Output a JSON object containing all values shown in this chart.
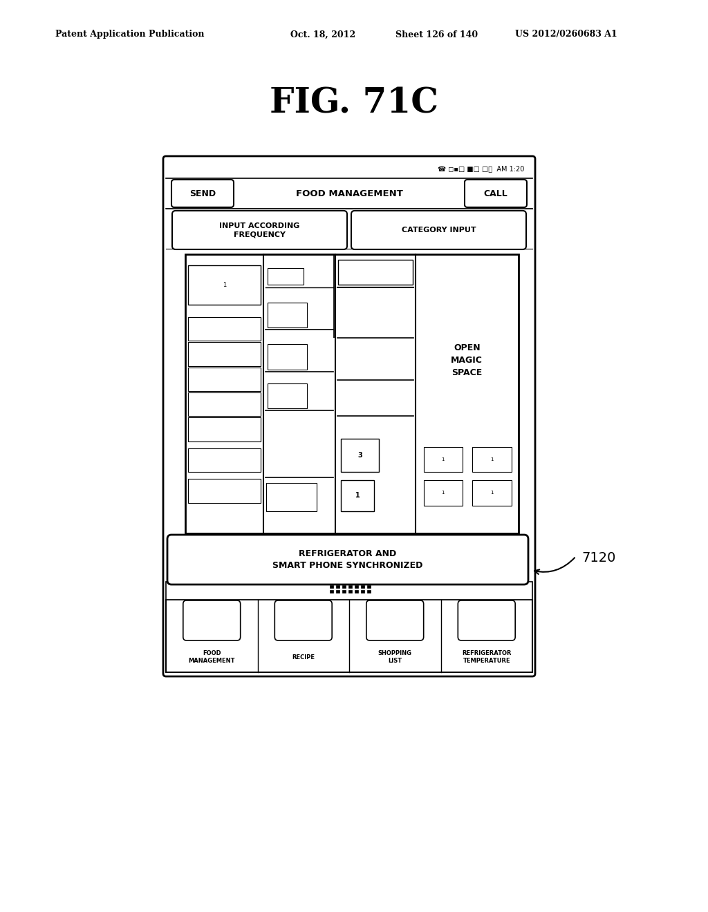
{
  "background_color": "#ffffff",
  "header_text": "Patent Application Publication",
  "header_date": "Oct. 18, 2012",
  "header_sheet": "Sheet 126 of 140",
  "header_patent": "US 2012/0260683 A1",
  "fig_title": "FIG. 71C",
  "nav_send": "SEND",
  "nav_title": "FOOD MANAGEMENT",
  "nav_call": "CALL",
  "btn1_text": "INPUT ACCORDING\nFREQUENCY",
  "btn2_text": "CATEGORY INPUT",
  "open_magic": "OPEN\nMAGIC\nSPACE",
  "sync_text": "REFRIGERATOR AND\nSMART PHONE SYNCHRONIZED",
  "sync_label": "7120",
  "bottom_tabs": [
    "FOOD\nMANAGEMENT",
    "RECIPE",
    "SHOPPING\nLIST",
    "REFRIGERATOR\nTEMPERATURE"
  ]
}
